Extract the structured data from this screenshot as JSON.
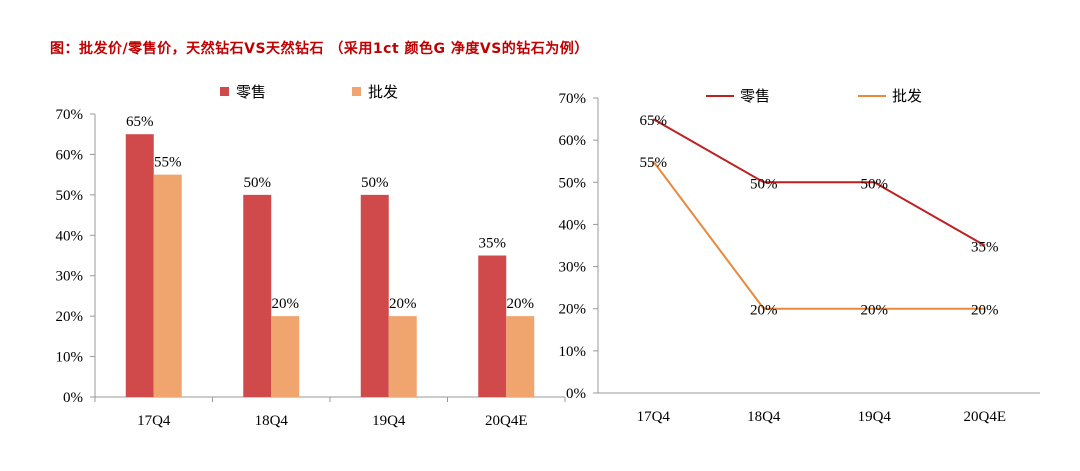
{
  "title": "图：批发价/零售价，天然钻石VS天然钻石 （采用1ct 颜色G 净度VS的钻石为例）",
  "colors": {
    "retail": "#d04a4c",
    "wholesale": "#f0a46e",
    "retail_line": "#c01f1f",
    "wholesale_line": "#e8893e",
    "axis": "#999999"
  },
  "chart_data": [
    {
      "type": "bar",
      "categories": [
        "17Q4",
        "18Q4",
        "19Q4",
        "20Q4E"
      ],
      "series": [
        {
          "name": "零售",
          "values": [
            65,
            50,
            50,
            35
          ],
          "labels": [
            "65%",
            "50%",
            "50%",
            "35%"
          ]
        },
        {
          "name": "批发",
          "values": [
            55,
            20,
            20,
            20
          ],
          "labels": [
            "55%",
            "20%",
            "20%",
            "20%"
          ]
        }
      ],
      "ylim": [
        0,
        70
      ],
      "yticks": [
        "0%",
        "10%",
        "20%",
        "30%",
        "40%",
        "50%",
        "60%",
        "70%"
      ],
      "legend": "top-center",
      "grid": false
    },
    {
      "type": "line",
      "categories": [
        "17Q4",
        "18Q4",
        "19Q4",
        "20Q4E"
      ],
      "series": [
        {
          "name": "零售",
          "values": [
            65,
            50,
            50,
            35
          ],
          "labels": [
            "65%",
            "50%",
            "50%",
            "35%"
          ]
        },
        {
          "name": "批发",
          "values": [
            55,
            20,
            20,
            20
          ],
          "labels": [
            "55%",
            "20%",
            "20%",
            "20%"
          ]
        }
      ],
      "ylim": [
        0,
        70
      ],
      "yticks": [
        "0%",
        "10%",
        "20%",
        "30%",
        "40%",
        "50%",
        "60%",
        "70%"
      ],
      "legend": "top-center",
      "grid": false
    }
  ]
}
